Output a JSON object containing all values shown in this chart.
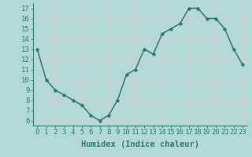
{
  "x": [
    0,
    1,
    2,
    3,
    4,
    5,
    6,
    7,
    8,
    9,
    10,
    11,
    12,
    13,
    14,
    15,
    16,
    17,
    18,
    19,
    20,
    21,
    22,
    23
  ],
  "y": [
    13,
    10,
    9,
    8.5,
    8,
    7.5,
    6.5,
    6,
    6.5,
    8,
    10.5,
    11,
    13,
    12.5,
    14.5,
    15,
    15.5,
    17,
    17,
    16,
    16,
    15,
    13,
    11.5
  ],
  "line_color": "#2a7d6e",
  "marker_color": "#2a7d6e",
  "bg_color": "#b2d8d8",
  "grid_color": "#d0eeee",
  "tick_color": "#2a7d6e",
  "xlabel": "Humidex (Indice chaleur)",
  "xlim": [
    -0.5,
    23.5
  ],
  "ylim": [
    5.5,
    17.5
  ],
  "yticks": [
    6,
    7,
    8,
    9,
    10,
    11,
    12,
    13,
    14,
    15,
    16,
    17
  ],
  "xticks": [
    0,
    1,
    2,
    3,
    4,
    5,
    6,
    7,
    8,
    9,
    10,
    11,
    12,
    13,
    14,
    15,
    16,
    17,
    18,
    19,
    20,
    21,
    22,
    23
  ],
  "xtick_labels": [
    "0",
    "1",
    "2",
    "3",
    "4",
    "5",
    "6",
    "7",
    "8",
    "9",
    "10",
    "11",
    "12",
    "13",
    "14",
    "15",
    "16",
    "17",
    "18",
    "19",
    "20",
    "21",
    "22",
    "23"
  ],
  "xlabel_fontsize": 7.5,
  "tick_fontsize": 6.5,
  "linewidth": 1.1,
  "markersize": 2.5
}
